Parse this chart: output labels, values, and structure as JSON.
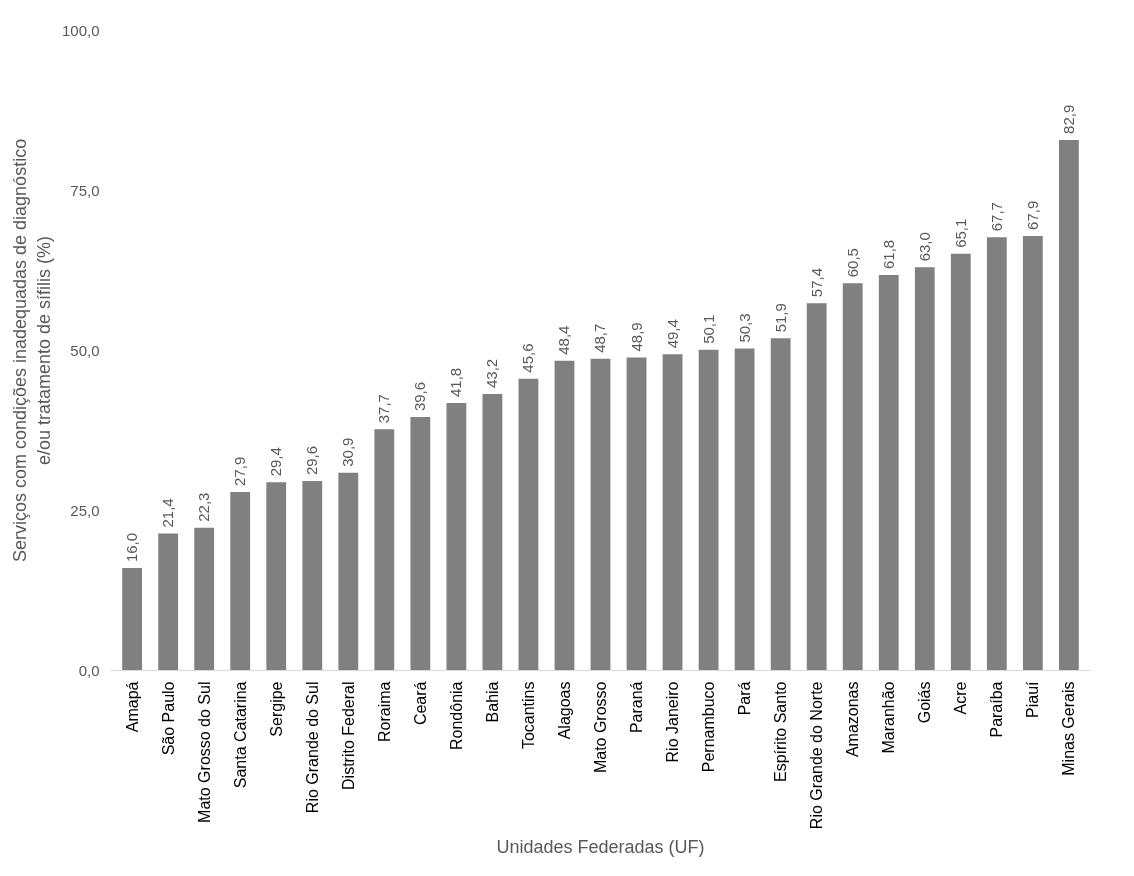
{
  "chart_data": {
    "type": "bar",
    "xlabel": "Unidades Federadas (UF)",
    "ylabel": "Serviços com condições inadequadas de diagnóstico\ne/ou tratamento de sífilis (%)",
    "categories": [
      "Amapá",
      "São Paulo",
      "Mato Grosso do Sul",
      "Santa Catarina",
      "Sergipe",
      "Rio Grande do Sul",
      "Distrito Federal",
      "Roraima",
      "Ceará",
      "Rondônia",
      "Bahia",
      "Tocantins",
      "Alagoas",
      "Mato Grosso",
      "Paraná",
      "Rio Janeiro",
      "Pernambuco",
      "Pará",
      "Espírito Santo",
      "Rio Grande do Norte",
      "Amazonas",
      "Maranhão",
      "Goiás",
      "Acre",
      "Paraíba",
      "Piauí",
      "Minas Gerais"
    ],
    "values": [
      16.0,
      21.4,
      22.3,
      27.9,
      29.4,
      29.6,
      30.9,
      37.7,
      39.6,
      41.8,
      43.2,
      45.6,
      48.4,
      48.7,
      48.9,
      49.4,
      50.1,
      50.3,
      51.9,
      57.4,
      60.5,
      61.8,
      63.0,
      65.1,
      67.7,
      67.9,
      82.9
    ],
    "value_labels": [
      "16,0",
      "21,4",
      "22,3",
      "27,9",
      "29,4",
      "29,6",
      "30,9",
      "37,7",
      "39,6",
      "41,8",
      "43,2",
      "45,6",
      "48,4",
      "48,7",
      "48,9",
      "49,4",
      "50,1",
      "50,3",
      "51,9",
      "57,4",
      "60,5",
      "61,8",
      "63,0",
      "65,1",
      "67,7",
      "67,9",
      "82,9"
    ],
    "color": "#808080",
    "ylim": [
      0,
      100
    ],
    "yticks": [
      {
        "value": 0,
        "label": "0,0"
      },
      {
        "value": 25,
        "label": "25,0"
      },
      {
        "value": 50,
        "label": "50,0"
      },
      {
        "value": 75,
        "label": "75,0"
      },
      {
        "value": 100,
        "label": "100,0"
      }
    ],
    "grid": false
  }
}
